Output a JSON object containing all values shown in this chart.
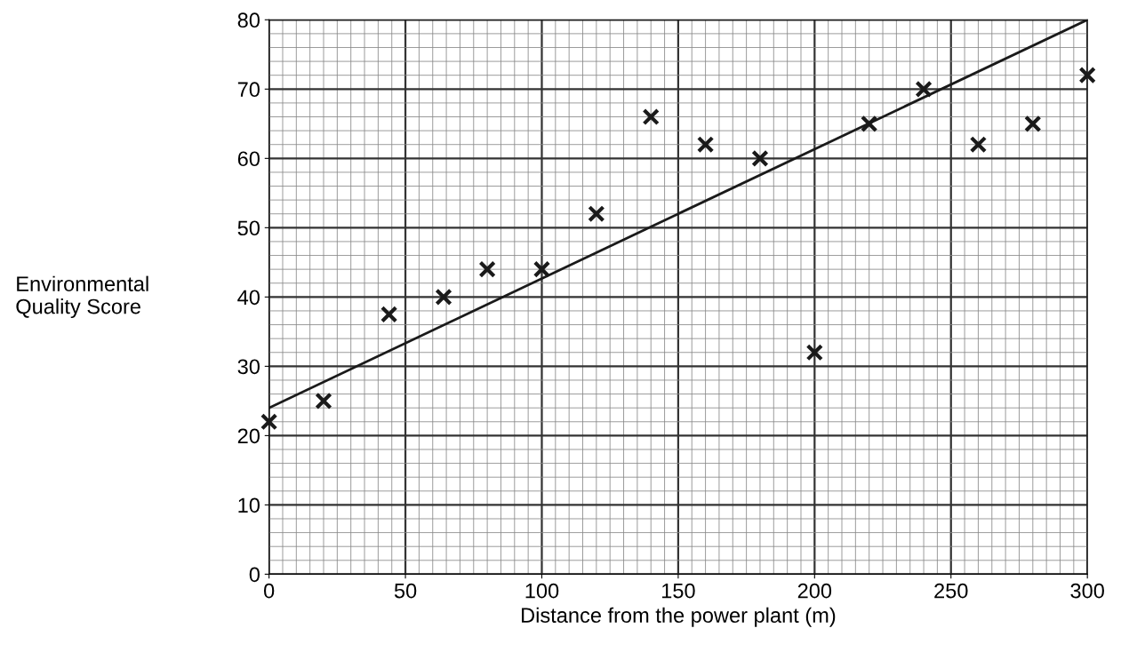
{
  "chart_data": {
    "type": "scatter",
    "xlabel": "Distance from the power plant (m)",
    "ylabel": "Environmental\nQuality Score",
    "xlim": [
      0,
      300
    ],
    "ylim": [
      0,
      80
    ],
    "xticks": [
      0,
      50,
      100,
      150,
      200,
      250,
      300
    ],
    "yticks": [
      0,
      10,
      20,
      30,
      40,
      50,
      60,
      70,
      80
    ],
    "grid": true,
    "series": [
      {
        "marker": "cross",
        "color": "#1a1a1a",
        "x": [
          0,
          20,
          44,
          64,
          80,
          100,
          120,
          140,
          160,
          180,
          200,
          220,
          240,
          260,
          280,
          300
        ],
        "values": [
          22,
          25,
          37.5,
          40,
          44,
          44,
          52,
          66,
          62,
          60,
          32,
          65,
          70,
          62,
          65,
          72
        ]
      },
      {
        "type": "line",
        "marker": "none",
        "color": "#1a1a1a",
        "x": [
          0,
          300
        ],
        "values": [
          24,
          80
        ]
      }
    ]
  }
}
